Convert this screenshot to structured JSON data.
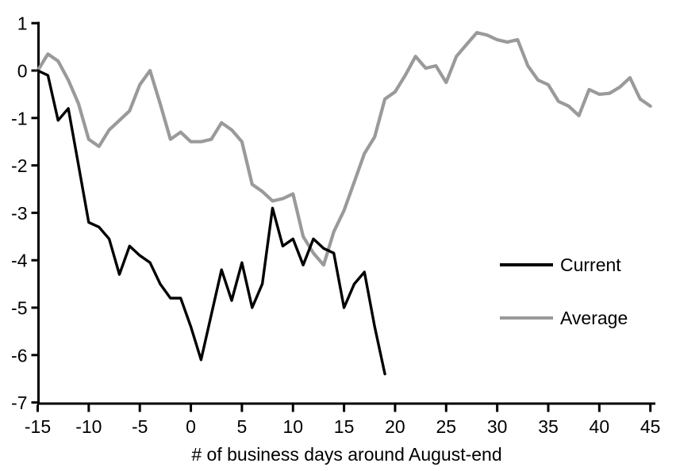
{
  "page": {
    "background": "#ffffff",
    "axis_color": "#000000",
    "text_color": "#000000"
  },
  "chart_data": {
    "type": "line",
    "title": "",
    "xlabel": "# of business days around August-end",
    "ylabel": "",
    "xlim": [
      -15,
      45
    ],
    "ylim": [
      -7,
      1
    ],
    "x_ticks": [
      -15,
      -10,
      -5,
      0,
      5,
      10,
      15,
      20,
      25,
      30,
      35,
      40,
      45
    ],
    "y_ticks": [
      1,
      0,
      -1,
      -2,
      -3,
      -4,
      -5,
      -6,
      -7
    ],
    "grid": false,
    "legend_position": "right-center",
    "series": [
      {
        "name": "Current",
        "color": "#000000",
        "x_start": -15,
        "x_step": 1,
        "values": [
          0,
          -0.1,
          -1.05,
          -0.8,
          -2,
          -3.2,
          -3.3,
          -3.55,
          -4.3,
          -3.7,
          -3.9,
          -4.05,
          -4.5,
          -4.8,
          -4.8,
          -5.4,
          -6.1,
          -5.15,
          -4.2,
          -4.85,
          -4.05,
          -5,
          -4.5,
          -2.9,
          -3.7,
          -3.55,
          -4.1,
          -3.55,
          -3.75,
          -3.85,
          -5,
          -4.5,
          -4.25,
          -5.4,
          -6.4
        ]
      },
      {
        "name": "Average",
        "color": "#9a9a9a",
        "x_start": -15,
        "x_step": 1,
        "values": [
          0,
          0.35,
          0.2,
          -0.2,
          -0.7,
          -1.45,
          -1.6,
          -1.25,
          -1.05,
          -0.85,
          -0.3,
          0,
          -0.7,
          -1.45,
          -1.3,
          -1.5,
          -1.5,
          -1.45,
          -1.1,
          -1.25,
          -1.5,
          -2.4,
          -2.55,
          -2.75,
          -2.7,
          -2.6,
          -3.5,
          -3.85,
          -4.1,
          -3.4,
          -2.95,
          -2.35,
          -1.75,
          -1.4,
          -0.6,
          -0.45,
          -0.1,
          0.3,
          0.05,
          0.1,
          -0.25,
          0.3,
          0.55,
          0.8,
          0.75,
          0.65,
          0.6,
          0.65,
          0.1,
          -0.2,
          -0.3,
          -0.65,
          -0.75,
          -0.95,
          -0.4,
          -0.5,
          -0.48,
          -0.35,
          -0.15,
          -0.6,
          -0.75
        ]
      }
    ]
  }
}
